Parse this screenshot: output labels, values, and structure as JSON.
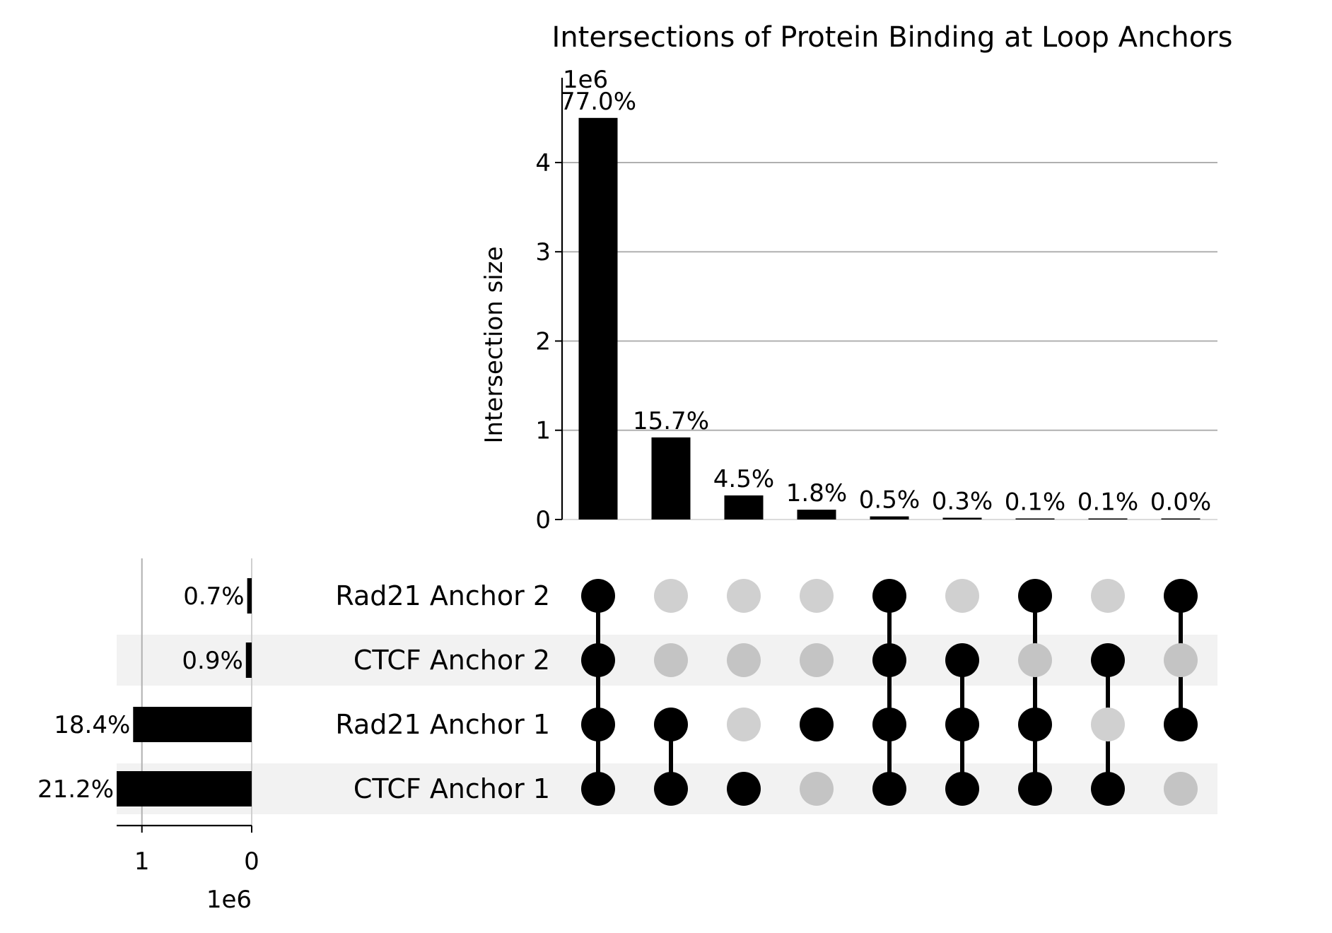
{
  "chart_data": {
    "type": "upset",
    "title": "Intersections of Protein Binding at Loop Anchors",
    "ylabel": "Intersection size",
    "y_scale_label": "1e6",
    "ylim": [
      0,
      4.95
    ],
    "yticks": [
      0,
      1,
      2,
      3,
      4
    ],
    "yticklabels": [
      "0",
      "1",
      "2",
      "3",
      "4"
    ],
    "sets": [
      "Rad21 Anchor 2",
      "CTCF Anchor 2",
      "Rad21 Anchor 1",
      "CTCF Anchor 1"
    ],
    "intersections": [
      {
        "members": [
          "CTCF Anchor 1",
          "Rad21 Anchor 1",
          "CTCF Anchor 2",
          "Rad21 Anchor 2"
        ],
        "size": 4.5,
        "label": "77.0%"
      },
      {
        "members": [
          "CTCF Anchor 1",
          "Rad21 Anchor 1"
        ],
        "size": 0.92,
        "label": "15.7%"
      },
      {
        "members": [
          "CTCF Anchor 1"
        ],
        "size": 0.27,
        "label": "4.5%"
      },
      {
        "members": [
          "Rad21 Anchor 1"
        ],
        "size": 0.11,
        "label": "1.8%"
      },
      {
        "members": [
          "CTCF Anchor 1",
          "Rad21 Anchor 1",
          "CTCF Anchor 2",
          "Rad21 Anchor 2"
        ],
        "size": 0.035,
        "label": "0.5%"
      },
      {
        "members": [
          "CTCF Anchor 1",
          "Rad21 Anchor 1",
          "CTCF Anchor 2"
        ],
        "size": 0.02,
        "label": "0.3%"
      },
      {
        "members": [
          "CTCF Anchor 1",
          "Rad21 Anchor 1",
          "Rad21 Anchor 2"
        ],
        "size": 0.008,
        "label": "0.1%"
      },
      {
        "members": [
          "CTCF Anchor 1",
          "CTCF Anchor 2"
        ],
        "size": 0.005,
        "label": "0.1%"
      },
      {
        "members": [
          "Rad21 Anchor 1",
          "Rad21 Anchor 2"
        ],
        "size": 0.002,
        "label": "0.0%"
      }
    ],
    "set_sizes": {
      "scale_label": "1e6",
      "xticks": [
        1,
        0
      ],
      "xticklabels": [
        "1",
        "0"
      ],
      "xlim_max": 1.23,
      "values": [
        {
          "set": "Rad21 Anchor 2",
          "size": 0.041,
          "label": "0.7%"
        },
        {
          "set": "CTCF Anchor 2",
          "size": 0.053,
          "label": "0.9%"
        },
        {
          "set": "Rad21 Anchor 1",
          "size": 1.08,
          "label": "18.4%"
        },
        {
          "set": "CTCF Anchor 1",
          "size": 1.24,
          "label": "21.2%"
        }
      ]
    },
    "grid": true,
    "colors": {
      "bar": "#000000",
      "active_dot": "#000000",
      "inactive_dot": "#d0d0d0",
      "inactive_dot_shaded": "#c4c4c4",
      "row_shade": "#f2f2f2",
      "grid": "#b0b0b0"
    }
  }
}
